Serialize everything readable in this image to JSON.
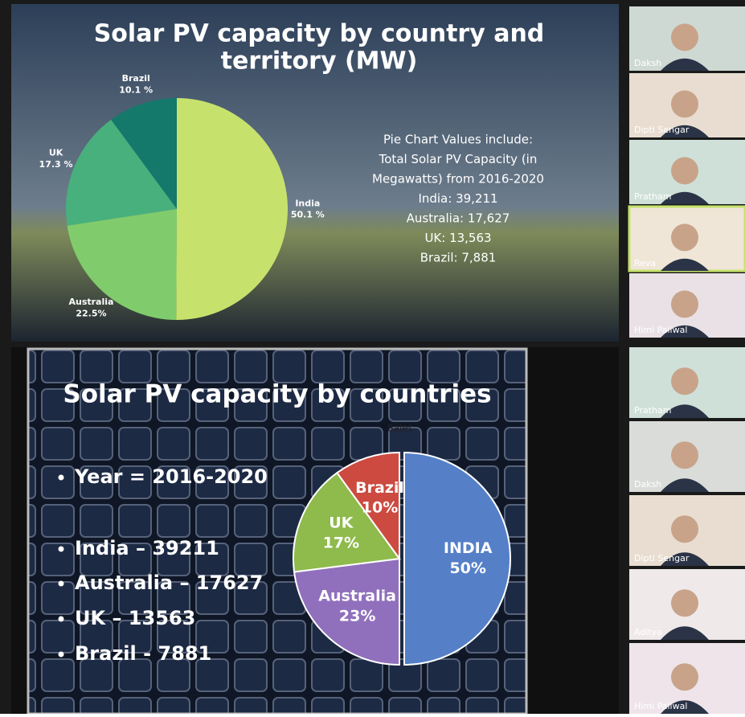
{
  "slide1": {
    "title_lines": [
      "Solar PV capacity by country and",
      "territory (MW)"
    ],
    "note_lines": [
      "Pie Chart Values include:",
      "Total Solar PV Capacity (in",
      "Megawatts) from 2016-2020",
      "India: 39,211",
      "Australia: 17,627",
      "UK: 13,563",
      "Brazil: 7,881"
    ],
    "pie": {
      "type": "pie",
      "categories": [
        "India",
        "Australia",
        "UK",
        "Brazil"
      ],
      "values": [
        50.1,
        22.5,
        17.3,
        10.1
      ],
      "value_labels": [
        "50.1 %",
        "22.5%",
        "17.3 %",
        "10.1 %"
      ],
      "colors": [
        "#c6e26c",
        "#80cc6c",
        "#48b07c",
        "#14796b"
      ]
    }
  },
  "slide2": {
    "title": "Solar PV capacity by countries",
    "bullets": [
      "Year = 2016-2020",
      "India – 39211",
      "Australia – 17627",
      "UK – 13563",
      "Brazil - 7881"
    ],
    "pie": {
      "type": "pie",
      "title": "Sales",
      "categories": [
        "INDIA",
        "Australia",
        "UK",
        "Brazil"
      ],
      "values": [
        50,
        23,
        17,
        10
      ],
      "value_labels": [
        "50%",
        "23%",
        "17%",
        "10%"
      ],
      "colors": [
        "#5580c8",
        "#9070bc",
        "#8fba4c",
        "#cc4a40"
      ]
    }
  },
  "participants": [
    "Daksh",
    "Dipti Sengar",
    "Pratham",
    "Reva",
    "Himi Paliwal",
    "Pratham",
    "Daksh",
    "Dipti Sengar",
    "Aditya",
    "Himi Paliwal"
  ]
}
